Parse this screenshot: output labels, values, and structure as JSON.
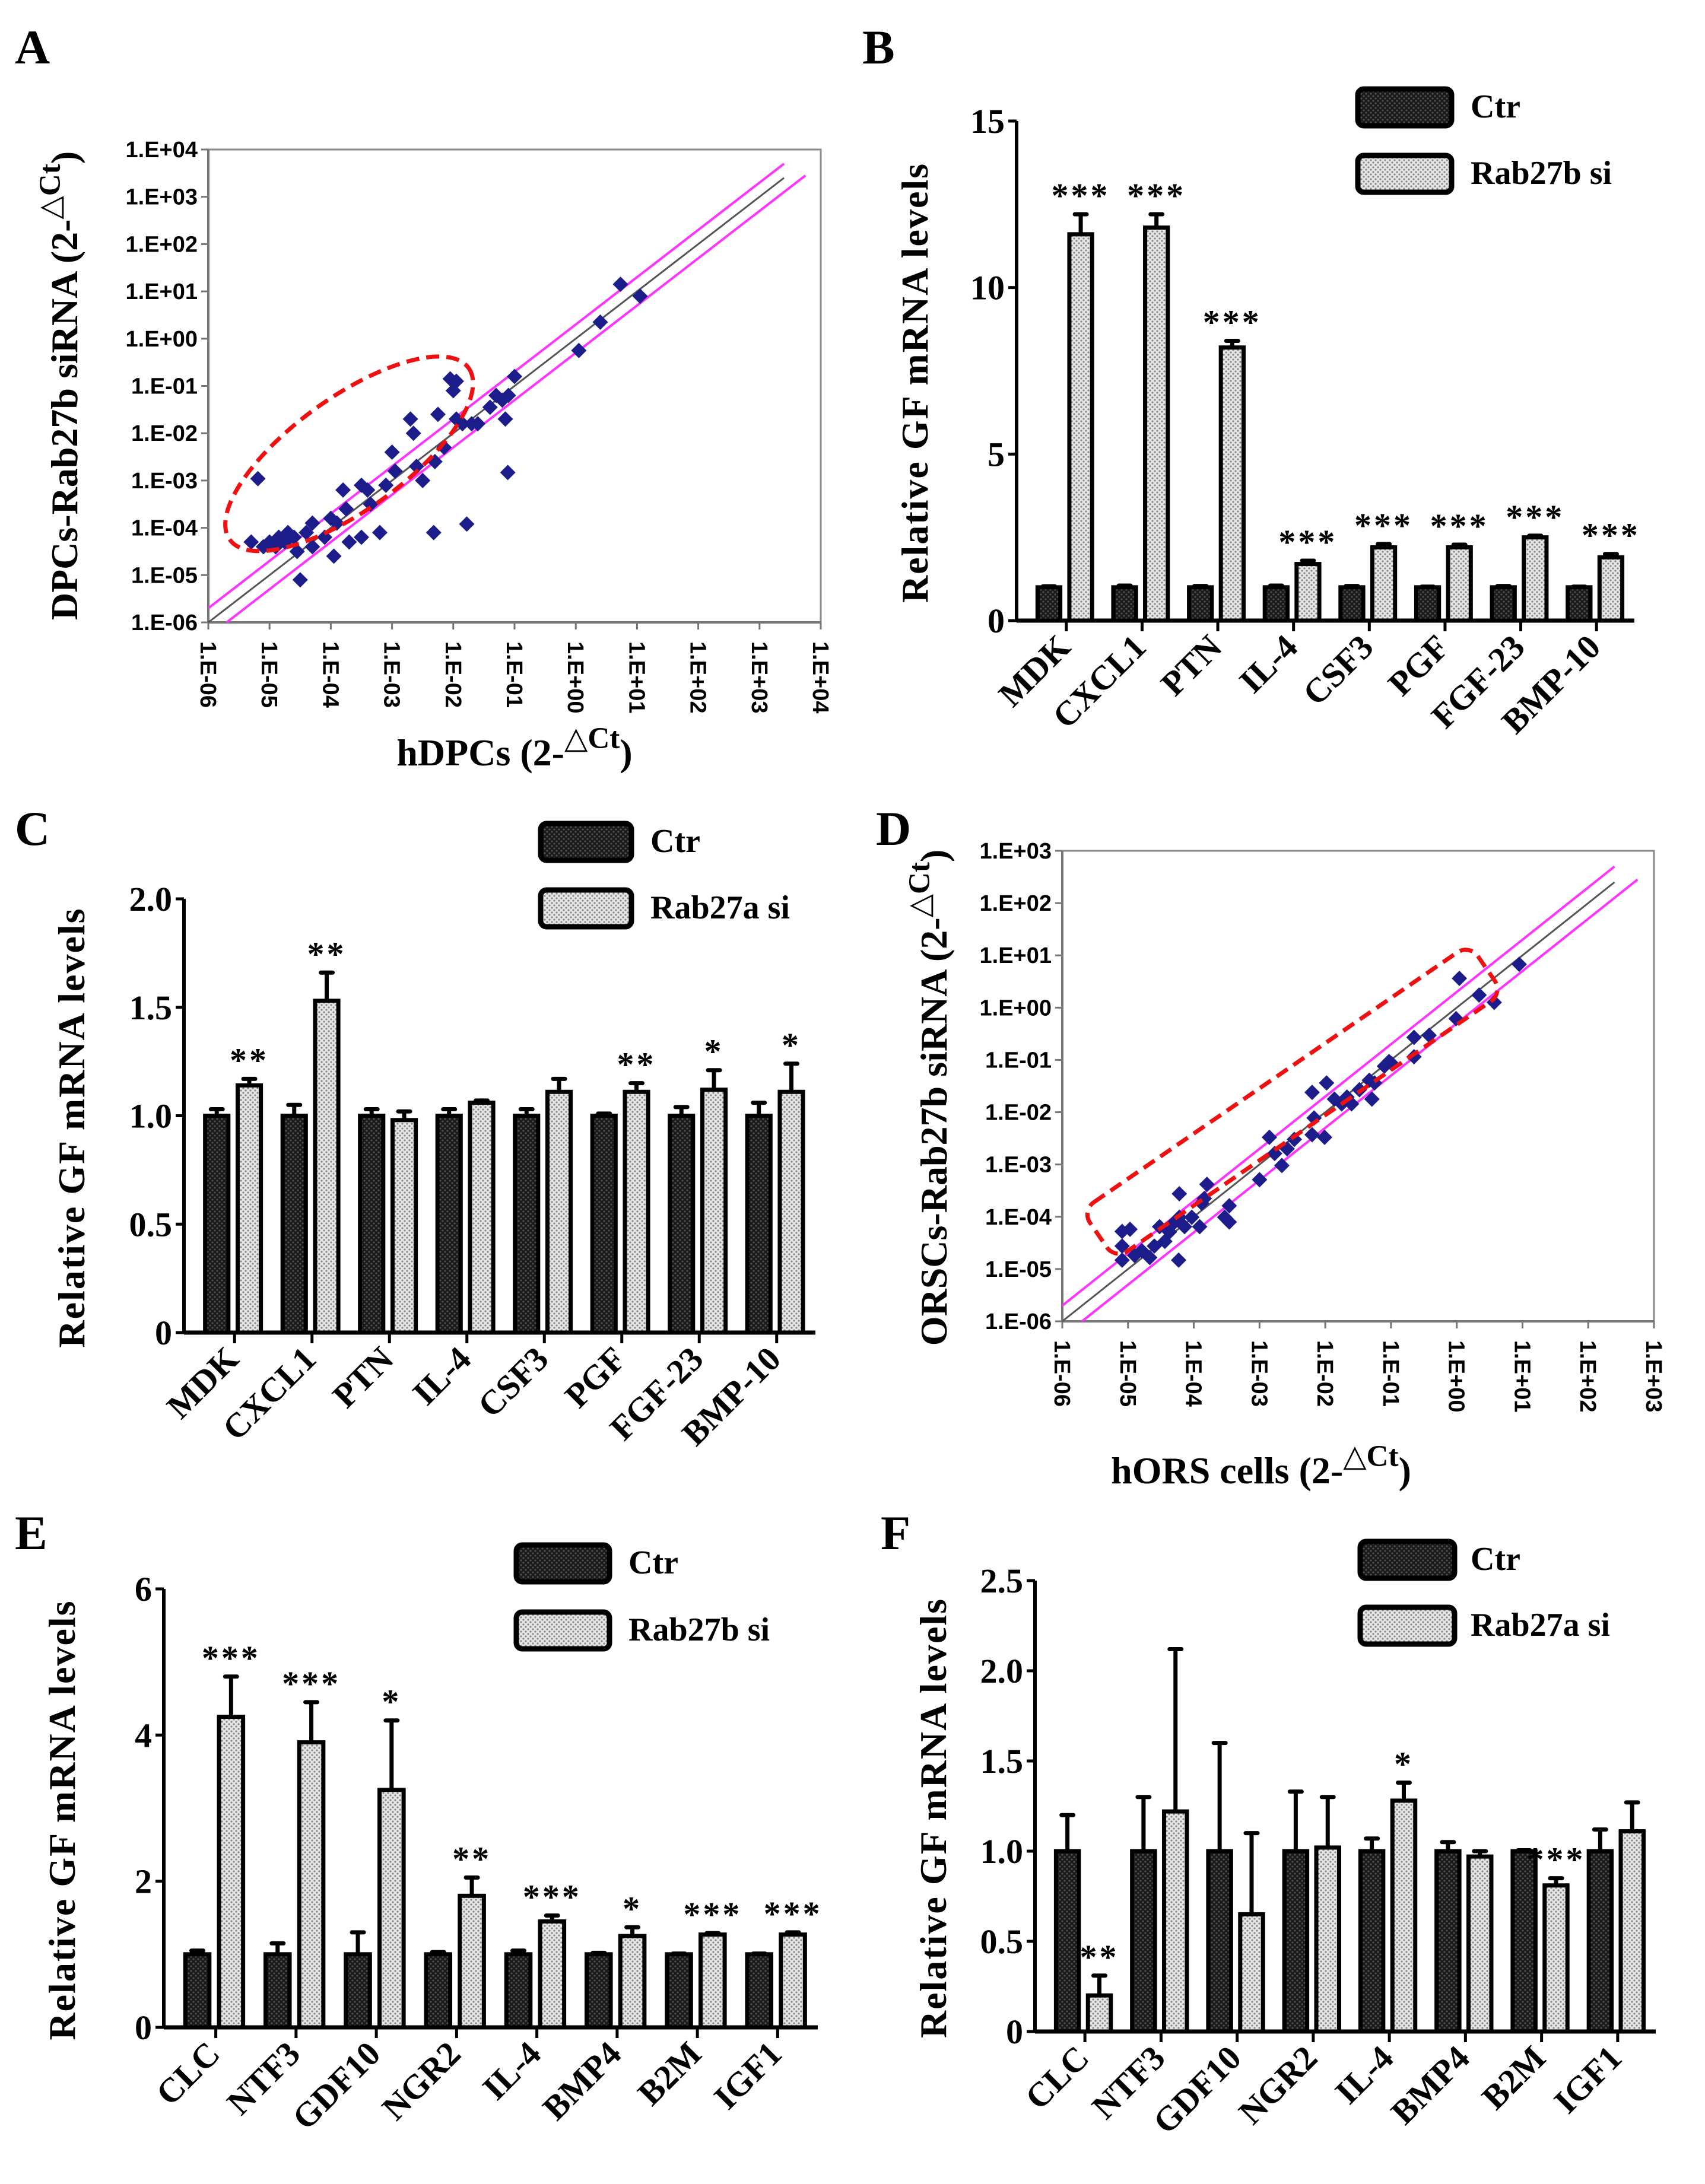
{
  "panel_labels": [
    "A",
    "B",
    "C",
    "D",
    "E",
    "F"
  ],
  "colors": {
    "point": "#1c1c8a",
    "fold_line": "#ff33ff",
    "identity_line": "#555555",
    "highlight": "#ee1111",
    "ctr_fill": "#222222",
    "si_fill": "#dddddd"
  },
  "chart_data": [
    {
      "panel": "A",
      "type": "scatter",
      "xlabel": {
        "pre": "hDPCs (2-",
        "sup": "△Ct",
        "post": ")"
      },
      "ylabel": {
        "pre": "DPCs-Rab27b siRNA (2-",
        "sup": "△Ct",
        "post": ")"
      },
      "scale": "log10",
      "xlim": [
        -6,
        4
      ],
      "ylim": [
        -6,
        4
      ],
      "xticks": [
        "1.E-06",
        "1.E-05",
        "1.E-04",
        "1.E-03",
        "1.E-02",
        "1.E-01",
        "1.E+00",
        "1.E+01",
        "1.E+02",
        "1.E+03",
        "1.E+04"
      ],
      "yticks": [
        "1.E-06",
        "1.E-05",
        "1.E-04",
        "1.E-03",
        "1.E-02",
        "1.E-01",
        "1.E+00",
        "1.E+01",
        "1.E+02",
        "1.E+03",
        "1.E+04"
      ],
      "fold_boundary_log10": 0.3,
      "points_log10": [
        [
          -5.3,
          -4.3
        ],
        [
          -5.19,
          -2.96
        ],
        [
          -5.1,
          -4.4
        ],
        [
          -5.0,
          -4.3
        ],
        [
          -4.9,
          -4.4
        ],
        [
          -4.85,
          -4.2
        ],
        [
          -4.75,
          -4.3
        ],
        [
          -4.7,
          -4.1
        ],
        [
          -4.6,
          -4.2
        ],
        [
          -4.55,
          -4.5
        ],
        [
          -4.5,
          -5.1
        ],
        [
          -4.4,
          -4.1
        ],
        [
          -4.3,
          -4.4
        ],
        [
          -4.3,
          -3.9
        ],
        [
          -4.1,
          -4.2
        ],
        [
          -4.0,
          -3.8
        ],
        [
          -3.95,
          -4.6
        ],
        [
          -3.9,
          -3.9
        ],
        [
          -3.8,
          -3.2
        ],
        [
          -3.75,
          -3.6
        ],
        [
          -3.7,
          -4.3
        ],
        [
          -3.5,
          -3.1
        ],
        [
          -3.5,
          -4.2
        ],
        [
          -3.4,
          -3.2
        ],
        [
          -3.35,
          -3.5
        ],
        [
          -3.2,
          -4.1
        ],
        [
          -3.1,
          -3.1
        ],
        [
          -3.0,
          -2.4
        ],
        [
          -2.95,
          -2.8
        ],
        [
          -2.7,
          -1.7
        ],
        [
          -2.65,
          -2.0
        ],
        [
          -2.6,
          -2.7
        ],
        [
          -2.5,
          -3.0
        ],
        [
          -2.3,
          -2.6
        ],
        [
          -2.25,
          -1.6
        ],
        [
          -2.32,
          -4.1
        ],
        [
          -2.15,
          -2.3
        ],
        [
          -2.05,
          -0.85
        ],
        [
          -2.0,
          -1.1
        ],
        [
          -1.95,
          -0.9
        ],
        [
          -1.95,
          -1.7
        ],
        [
          -1.85,
          -1.8
        ],
        [
          -1.78,
          -3.92
        ],
        [
          -1.7,
          -1.8
        ],
        [
          -1.6,
          -1.8
        ],
        [
          -1.4,
          -1.45
        ],
        [
          -1.3,
          -1.2
        ],
        [
          -1.2,
          -1.3
        ],
        [
          -1.15,
          -1.7
        ],
        [
          -1.1,
          -1.2
        ],
        [
          -1.11,
          -2.83
        ],
        [
          -1.0,
          -0.8
        ],
        [
          0.05,
          -0.25
        ],
        [
          0.4,
          0.35
        ],
        [
          0.73,
          1.15
        ],
        [
          1.05,
          0.9
        ]
      ]
    },
    {
      "panel": "B",
      "type": "bar",
      "categories": [
        "MDK",
        "CXCL1",
        "PTN",
        "IL-4",
        "CSF3",
        "PGF",
        "FGF-23",
        "BMP-10"
      ],
      "series": [
        {
          "name": "Ctr",
          "values": [
            1,
            1,
            1,
            1,
            1,
            1,
            1,
            1
          ],
          "errors": [
            0.03,
            0.05,
            0.04,
            0.05,
            0.04,
            0.02,
            0.04,
            0.02
          ]
        },
        {
          "name": "Rab27b si",
          "values": [
            11.6,
            11.8,
            8.2,
            1.7,
            2.2,
            2.2,
            2.5,
            1.9
          ],
          "errors": [
            0.6,
            0.4,
            0.2,
            0.1,
            0.1,
            0.08,
            0.05,
            0.1
          ]
        }
      ],
      "significance": [
        "***",
        "***",
        "***",
        "***",
        "***",
        "***",
        "***",
        "***"
      ],
      "ylabel": "Relative GF mRNA levels",
      "ylim": [
        0,
        15
      ],
      "yticks": [
        {
          "value": 0,
          "label": "0"
        },
        {
          "value": 5,
          "label": "5"
        },
        {
          "value": 10,
          "label": "10"
        },
        {
          "value": 15,
          "label": "15"
        }
      ],
      "legend": "top-right"
    },
    {
      "panel": "C",
      "type": "bar",
      "categories": [
        "MDK",
        "CXCL1",
        "PTN",
        "IL-4",
        "CSF3",
        "PGF",
        "FGF-23",
        "BMP-10"
      ],
      "series": [
        {
          "name": "Ctr",
          "values": [
            1,
            1,
            1,
            1,
            1,
            1,
            1,
            1
          ],
          "errors": [
            0.03,
            0.05,
            0.03,
            0.03,
            0.03,
            0.01,
            0.04,
            0.06
          ]
        },
        {
          "name": "Rab27a si",
          "values": [
            1.14,
            1.53,
            0.98,
            1.06,
            1.11,
            1.11,
            1.12,
            1.11
          ],
          "errors": [
            0.03,
            0.13,
            0.04,
            0.01,
            0.06,
            0.04,
            0.09,
            0.13
          ]
        }
      ],
      "significance": [
        "**",
        "**",
        "",
        "",
        "",
        "**",
        "*",
        "*"
      ],
      "ylabel": "Relative GF mRNA levels",
      "ylim": [
        0,
        2
      ],
      "yticks": [
        {
          "value": 0,
          "label": "0"
        },
        {
          "value": 0.5,
          "label": "0.5"
        },
        {
          "value": 1,
          "label": "1.0"
        },
        {
          "value": 1.5,
          "label": "1.5"
        },
        {
          "value": 2,
          "label": "2.0"
        }
      ],
      "legend": "top-right"
    },
    {
      "panel": "D",
      "type": "scatter",
      "xlabel": {
        "pre": "hORS cells (2-",
        "sup": "△Ct",
        "post": ")"
      },
      "ylabel": {
        "pre": "ORSCs-Rab27b siRNA (2-",
        "sup": "△Ct",
        "post": ")"
      },
      "scale": "log10",
      "xlim": [
        -6,
        3
      ],
      "ylim": [
        -6,
        3
      ],
      "xticks": [
        "1.E-06",
        "1.E-05",
        "1.E-04",
        "1.E-03",
        "1.E-02",
        "1.E-01",
        "1.E+00",
        "1.E+01",
        "1.E+02",
        "1.E+03"
      ],
      "yticks": [
        "1.E-06",
        "1.E-05",
        "1.E-04",
        "1.E-03",
        "1.E-02",
        "1.E-01",
        "1.E+00",
        "1.E+01",
        "1.E+02",
        "1.E+03"
      ],
      "fold_boundary_log10": 0.3,
      "points_log10": [
        [
          -5.09,
          -4.56
        ],
        [
          -5.09,
          -4.28
        ],
        [
          -4.97,
          -4.24
        ],
        [
          -5.09,
          -4.83
        ],
        [
          -4.9,
          -4.74
        ],
        [
          -4.79,
          -4.65
        ],
        [
          -4.67,
          -4.78
        ],
        [
          -4.6,
          -4.56
        ],
        [
          -4.52,
          -4.19
        ],
        [
          -4.44,
          -4.47
        ],
        [
          -4.37,
          -4.29
        ],
        [
          -4.29,
          -4.1
        ],
        [
          -4.22,
          -4.01
        ],
        [
          -4.22,
          -3.56
        ],
        [
          -4.23,
          -4.83
        ],
        [
          -4.14,
          -4.19
        ],
        [
          -4.03,
          -4.01
        ],
        [
          -3.91,
          -4.19
        ],
        [
          -3.88,
          -3.74
        ],
        [
          -3.8,
          -3.38
        ],
        [
          -3.84,
          -3.65
        ],
        [
          -3.53,
          -4.01
        ],
        [
          -3.46,
          -3.79
        ],
        [
          -3.46,
          -4.1
        ],
        [
          -3.0,
          -3.29
        ],
        [
          -2.85,
          -2.48
        ],
        [
          -2.77,
          -2.79
        ],
        [
          -2.66,
          -3.02
        ],
        [
          -2.58,
          -2.7
        ],
        [
          -2.47,
          -2.52
        ],
        [
          -2.2,
          -1.62
        ],
        [
          -2.2,
          -2.43
        ],
        [
          -2.17,
          -2.11
        ],
        [
          -2.01,
          -2.48
        ],
        [
          -1.98,
          -1.44
        ],
        [
          -1.86,
          -1.75
        ],
        [
          -1.75,
          -1.84
        ],
        [
          -1.67,
          -1.71
        ],
        [
          -1.6,
          -1.84
        ],
        [
          -1.48,
          -1.57
        ],
        [
          -1.33,
          -1.39
        ],
        [
          -1.29,
          -1.75
        ],
        [
          -1.25,
          -1.44
        ],
        [
          -1.1,
          -1.12
        ],
        [
          -1.03,
          -1.03
        ],
        [
          -0.99,
          -1.07
        ],
        [
          -0.65,
          -0.57
        ],
        [
          -0.65,
          -0.94
        ],
        [
          -0.42,
          -0.53
        ],
        [
          -0.01,
          -0.21
        ],
        [
          0.04,
          0.56
        ],
        [
          0.34,
          0.24
        ],
        [
          0.57,
          0.1
        ],
        [
          0.95,
          0.83
        ]
      ]
    },
    {
      "panel": "E",
      "type": "bar",
      "categories": [
        "CLC",
        "NTF3",
        "GDF10",
        "NGR2",
        "IL-4",
        "BMP4",
        "B2M",
        "IGF1"
      ],
      "series": [
        {
          "name": "Ctr",
          "values": [
            1,
            1,
            1,
            1,
            1,
            1,
            1,
            1
          ],
          "errors": [
            0.05,
            0.15,
            0.3,
            0.03,
            0.05,
            0.02,
            0.01,
            0.01
          ]
        },
        {
          "name": "Rab27b si",
          "values": [
            4.25,
            3.9,
            3.25,
            1.8,
            1.45,
            1.25,
            1.27,
            1.27
          ],
          "errors": [
            0.55,
            0.55,
            0.95,
            0.25,
            0.08,
            0.12,
            0.02,
            0.03
          ]
        }
      ],
      "significance": [
        "***",
        "***",
        "*",
        "**",
        "***",
        "*",
        "***",
        "***"
      ],
      "ylabel": "Relative GF mRNA levels",
      "ylim": [
        0,
        6
      ],
      "yticks": [
        {
          "value": 0,
          "label": "0"
        },
        {
          "value": 2,
          "label": "2"
        },
        {
          "value": 4,
          "label": "4"
        },
        {
          "value": 6,
          "label": "6"
        }
      ],
      "legend": "top-right"
    },
    {
      "panel": "F",
      "type": "bar",
      "categories": [
        "CLC",
        "NTF3",
        "GDF10",
        "NGR2",
        "IL-4",
        "BMP4",
        "B2M",
        "IGF1"
      ],
      "series": [
        {
          "name": "Ctr",
          "values": [
            1,
            1,
            1,
            1,
            1,
            1,
            1,
            1
          ],
          "errors": [
            0.2,
            0.3,
            0.6,
            0.33,
            0.07,
            0.05,
            0.005,
            0.12
          ]
        },
        {
          "name": "Rab27a si",
          "values": [
            0.2,
            1.22,
            0.65,
            1.02,
            1.28,
            0.97,
            0.81,
            1.11
          ],
          "errors": [
            0.11,
            0.9,
            0.45,
            0.28,
            0.1,
            0.03,
            0.04,
            0.16
          ]
        }
      ],
      "significance": [
        "**",
        "",
        "",
        "",
        "*",
        "",
        "***",
        ""
      ],
      "ylabel": "Relative GF mRNA levels",
      "ylim": [
        0,
        2.5
      ],
      "yticks": [
        {
          "value": 0,
          "label": "0"
        },
        {
          "value": 0.5,
          "label": "0.5"
        },
        {
          "value": 1,
          "label": "1.0"
        },
        {
          "value": 1.5,
          "label": "1.5"
        },
        {
          "value": 2,
          "label": "2.0"
        },
        {
          "value": 2.5,
          "label": "2.5"
        }
      ],
      "legend": "top-right"
    }
  ]
}
